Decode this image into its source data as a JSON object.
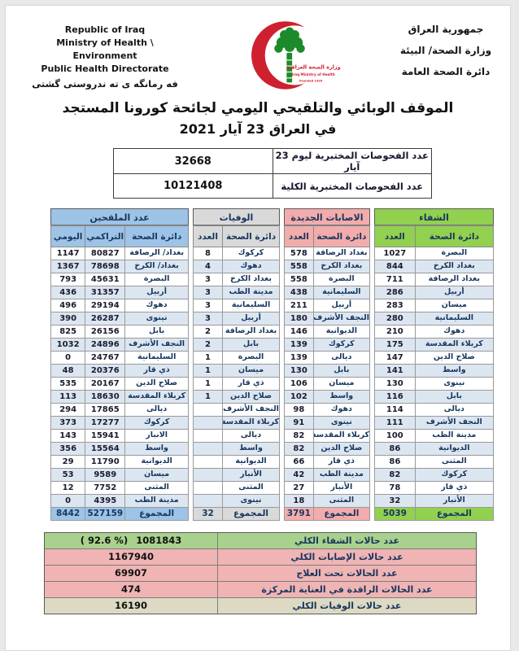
{
  "colors": {
    "table_green": "#92d050",
    "table_pink": "#f2acac",
    "table_gray": "#d9d9d9",
    "table_blue": "#9dc3e6",
    "alt_row": "#dce6f1",
    "summary_green": "#a9d18e",
    "summary_pink": "#f0b4b4",
    "summary_beige": "#ddd9c3",
    "navy_text": "#17365d",
    "logo_red": "#cf2030",
    "logo_green": "#1d8a2a"
  },
  "header": {
    "english_lines": [
      "Republic of Iraq",
      "Ministry of Health \\ Environment",
      "Public Health Directorate"
    ],
    "kurdish_line": "فه رمانگه ی ته ندروستی گشتی",
    "arabic_lines": [
      "جمهورية العراق",
      "وزارة الصحة/ البيئة",
      "دائرة الصحة العامة"
    ],
    "logo": {
      "arabic_text": "وزارة الصحة العراقية",
      "english_text": "Iraq Ministry of Health",
      "founded_text": "Founded 1920"
    }
  },
  "title": {
    "line1": "الموقف الوبائي والتلقيحي اليومي لجائحة كورونا المستجد",
    "line2": "في العراق 23  آيار 2021"
  },
  "tests": [
    {
      "label": "عدد الفحوصات المختبرية  ليوم 23 آيار",
      "value": "32668"
    },
    {
      "label": "عدد الفحوصات المختبرية الكلية",
      "value": "10121408"
    }
  ],
  "tables": [
    {
      "title": "الشفاء",
      "theme": "green",
      "columns": [
        "دائرة الصحة",
        "العدد"
      ],
      "rows": [
        [
          "البصرة",
          "1027"
        ],
        [
          "بغداد الكرخ",
          "844"
        ],
        [
          "بغداد الرصافة",
          "711"
        ],
        [
          "أربيل",
          "286"
        ],
        [
          "ميسان",
          "283"
        ],
        [
          "السليمانية",
          "280"
        ],
        [
          "دهوك",
          "210"
        ],
        [
          "كربلاء المقدسة",
          "175"
        ],
        [
          "صلاح الدين",
          "147"
        ],
        [
          "واسط",
          "141"
        ],
        [
          "نينوى",
          "130"
        ],
        [
          "بابل",
          "116"
        ],
        [
          "ديالى",
          "114"
        ],
        [
          "النجف الأشرف",
          "111"
        ],
        [
          "مدينة الطب",
          "100"
        ],
        [
          "الديوانية",
          "86"
        ],
        [
          "المثنى",
          "86"
        ],
        [
          "كركوك",
          "82"
        ],
        [
          "ذي قار",
          "78"
        ],
        [
          "الأنبار",
          "32"
        ]
      ],
      "total": [
        "المجموع",
        "5039"
      ]
    },
    {
      "title": "الاصابات الجديدة",
      "theme": "pink",
      "columns": [
        "دائرة الصحة",
        "العدد"
      ],
      "rows": [
        [
          "بغداد الرصافة",
          "578"
        ],
        [
          "بغداد الكرخ",
          "558"
        ],
        [
          "البصرة",
          "558"
        ],
        [
          "السليمانية",
          "438"
        ],
        [
          "أربيل",
          "211"
        ],
        [
          "النجف الأشرف",
          "180"
        ],
        [
          "الديوانية",
          "146"
        ],
        [
          "كركوك",
          "139"
        ],
        [
          "ديالى",
          "139"
        ],
        [
          "بابل",
          "130"
        ],
        [
          "ميسان",
          "106"
        ],
        [
          "واسط",
          "102"
        ],
        [
          "دهوك",
          "98"
        ],
        [
          "نينوى",
          "91"
        ],
        [
          "كربلاء المقدسة",
          "82"
        ],
        [
          "صلاح الدين",
          "82"
        ],
        [
          "ذي قار",
          "66"
        ],
        [
          "مدينة الطب",
          "42"
        ],
        [
          "الأنبار",
          "27"
        ],
        [
          "المثنى",
          "18"
        ]
      ],
      "total": [
        "المجموع",
        "3791"
      ]
    },
    {
      "title": "الوفيات",
      "theme": "gray",
      "columns": [
        "دائرة الصحة",
        "العدد"
      ],
      "rows": [
        [
          "كركوك",
          "8"
        ],
        [
          "دهوك",
          "4"
        ],
        [
          "بغداد الكرخ",
          "3"
        ],
        [
          "مدينة الطب",
          "3"
        ],
        [
          "السليمانية",
          "3"
        ],
        [
          "أربيل",
          "3"
        ],
        [
          "بغداد الرصافة",
          "2"
        ],
        [
          "بابل",
          "2"
        ],
        [
          "البصرة",
          "1"
        ],
        [
          "ميسان",
          "1"
        ],
        [
          "ذي قار",
          "1"
        ],
        [
          "صلاح الدين",
          "1"
        ],
        [
          "النجف الأشرف",
          ""
        ],
        [
          "كربلاء المقدسة",
          ""
        ],
        [
          "ديالى",
          ""
        ],
        [
          "واسط",
          ""
        ],
        [
          "الديوانية",
          ""
        ],
        [
          "الأنبار",
          ""
        ],
        [
          "المثنى",
          ""
        ],
        [
          "نينوى",
          ""
        ]
      ],
      "total": [
        "المجموع",
        "32"
      ]
    },
    {
      "title": "عدد الملقحين",
      "theme": "blue",
      "columns": [
        "دائرة الصحة",
        "التراكمي",
        "اليومي"
      ],
      "rows": [
        [
          "بغداد/ الرصافة",
          "80827",
          "1147"
        ],
        [
          "بغداد/ الكرخ",
          "78698",
          "1367"
        ],
        [
          "البصرة",
          "45631",
          "793"
        ],
        [
          "أربيل",
          "31357",
          "436"
        ],
        [
          "دهوك",
          "29194",
          "496"
        ],
        [
          "نينوى",
          "26287",
          "390"
        ],
        [
          "بابل",
          "26156",
          "825"
        ],
        [
          "النجف الأشرف",
          "24896",
          "1032"
        ],
        [
          "السليمانية",
          "24767",
          "0"
        ],
        [
          "ذي قار",
          "20376",
          "48"
        ],
        [
          "صلاح الدين",
          "20167",
          "535"
        ],
        [
          "كربلاء المقدسة",
          "18630",
          "113"
        ],
        [
          "ديالى",
          "17865",
          "294"
        ],
        [
          "كركوك",
          "17277",
          "373"
        ],
        [
          "الانبار",
          "15941",
          "143"
        ],
        [
          "واسط",
          "15564",
          "356"
        ],
        [
          "الديوانية",
          "11790",
          "29"
        ],
        [
          "ميسان",
          "9589",
          "53"
        ],
        [
          "المثنى",
          "7752",
          "12"
        ],
        [
          "مدينة الطب",
          "4395",
          "0"
        ]
      ],
      "total": [
        "المجموع",
        "527159",
        "8442"
      ]
    }
  ],
  "summary": [
    {
      "label": "عدد حالات الشفاء الكلي",
      "value": "1081843",
      "note": "( 92.6 %)",
      "theme": "green"
    },
    {
      "label": "عدد حالات الإصابات الكلي",
      "value": "1167940",
      "theme": "pink"
    },
    {
      "label": "عدد الحالات تحت العلاج",
      "value": "69907",
      "theme": "pink"
    },
    {
      "label": "عدد الحالات الراقدة في العناية المركزة",
      "value": "474",
      "theme": "pink"
    },
    {
      "label": "عدد حالات الوفيات الكلي",
      "value": "16190",
      "theme": "beige"
    }
  ]
}
